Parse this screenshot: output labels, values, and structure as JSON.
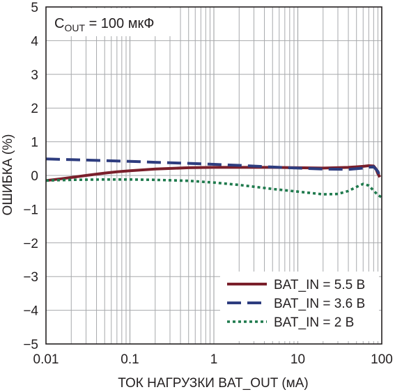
{
  "chart_data": {
    "type": "line",
    "annotation": {
      "main": "C",
      "sub": "OUT",
      "rest": " = 100 мкФ"
    },
    "xlabel": "ТОК НАГРУЗКИ BAT_OUT (мА)",
    "ylabel": "ОШИБКА (%)",
    "x_scale": "log",
    "xlim": [
      0.01,
      100
    ],
    "ylim": [
      -5,
      5
    ],
    "x_tick_labels": [
      "0.01",
      "0.1",
      "1",
      "10",
      "100"
    ],
    "y_tick_labels": [
      "5",
      "4",
      "3",
      "2",
      "1",
      "0",
      "−1",
      "−2",
      "−3",
      "−4",
      "−5"
    ],
    "grid": true,
    "legend_position": "bottom-right",
    "series": [
      {
        "name": "BAT_IN = 5.5 В",
        "color": "#7a1f2b",
        "style": "solid",
        "x": [
          0.01,
          0.015,
          0.02,
          0.03,
          0.05,
          0.07,
          0.1,
          0.2,
          0.5,
          1,
          2,
          5,
          10,
          20,
          40,
          60,
          70,
          80,
          85,
          90,
          95
        ],
        "y": [
          -0.15,
          -0.1,
          -0.06,
          0.0,
          0.07,
          0.11,
          0.14,
          0.19,
          0.23,
          0.24,
          0.24,
          0.24,
          0.23,
          0.22,
          0.24,
          0.27,
          0.29,
          0.28,
          0.2,
          0.05,
          -0.05
        ]
      },
      {
        "name": "BAT_IN = 3.6 В",
        "color": "#2e3d7f",
        "style": "dash",
        "x": [
          0.01,
          0.02,
          0.05,
          0.1,
          0.2,
          0.5,
          1,
          2,
          5,
          10,
          20,
          40,
          60,
          80,
          90,
          95
        ],
        "y": [
          0.49,
          0.47,
          0.44,
          0.42,
          0.39,
          0.36,
          0.33,
          0.3,
          0.25,
          0.22,
          0.19,
          0.18,
          0.22,
          0.26,
          0.12,
          -0.05
        ]
      },
      {
        "name": "BAT_IN = 2 В",
        "color": "#1f7a4d",
        "style": "dot",
        "x": [
          0.01,
          0.02,
          0.05,
          0.1,
          0.2,
          0.5,
          1,
          2,
          5,
          10,
          20,
          30,
          40,
          50,
          60,
          70,
          80,
          90,
          100
        ],
        "y": [
          -0.15,
          -0.13,
          -0.12,
          -0.12,
          -0.13,
          -0.16,
          -0.21,
          -0.28,
          -0.4,
          -0.48,
          -0.56,
          -0.55,
          -0.46,
          -0.34,
          -0.25,
          -0.3,
          -0.45,
          -0.58,
          -0.65
        ]
      }
    ]
  }
}
